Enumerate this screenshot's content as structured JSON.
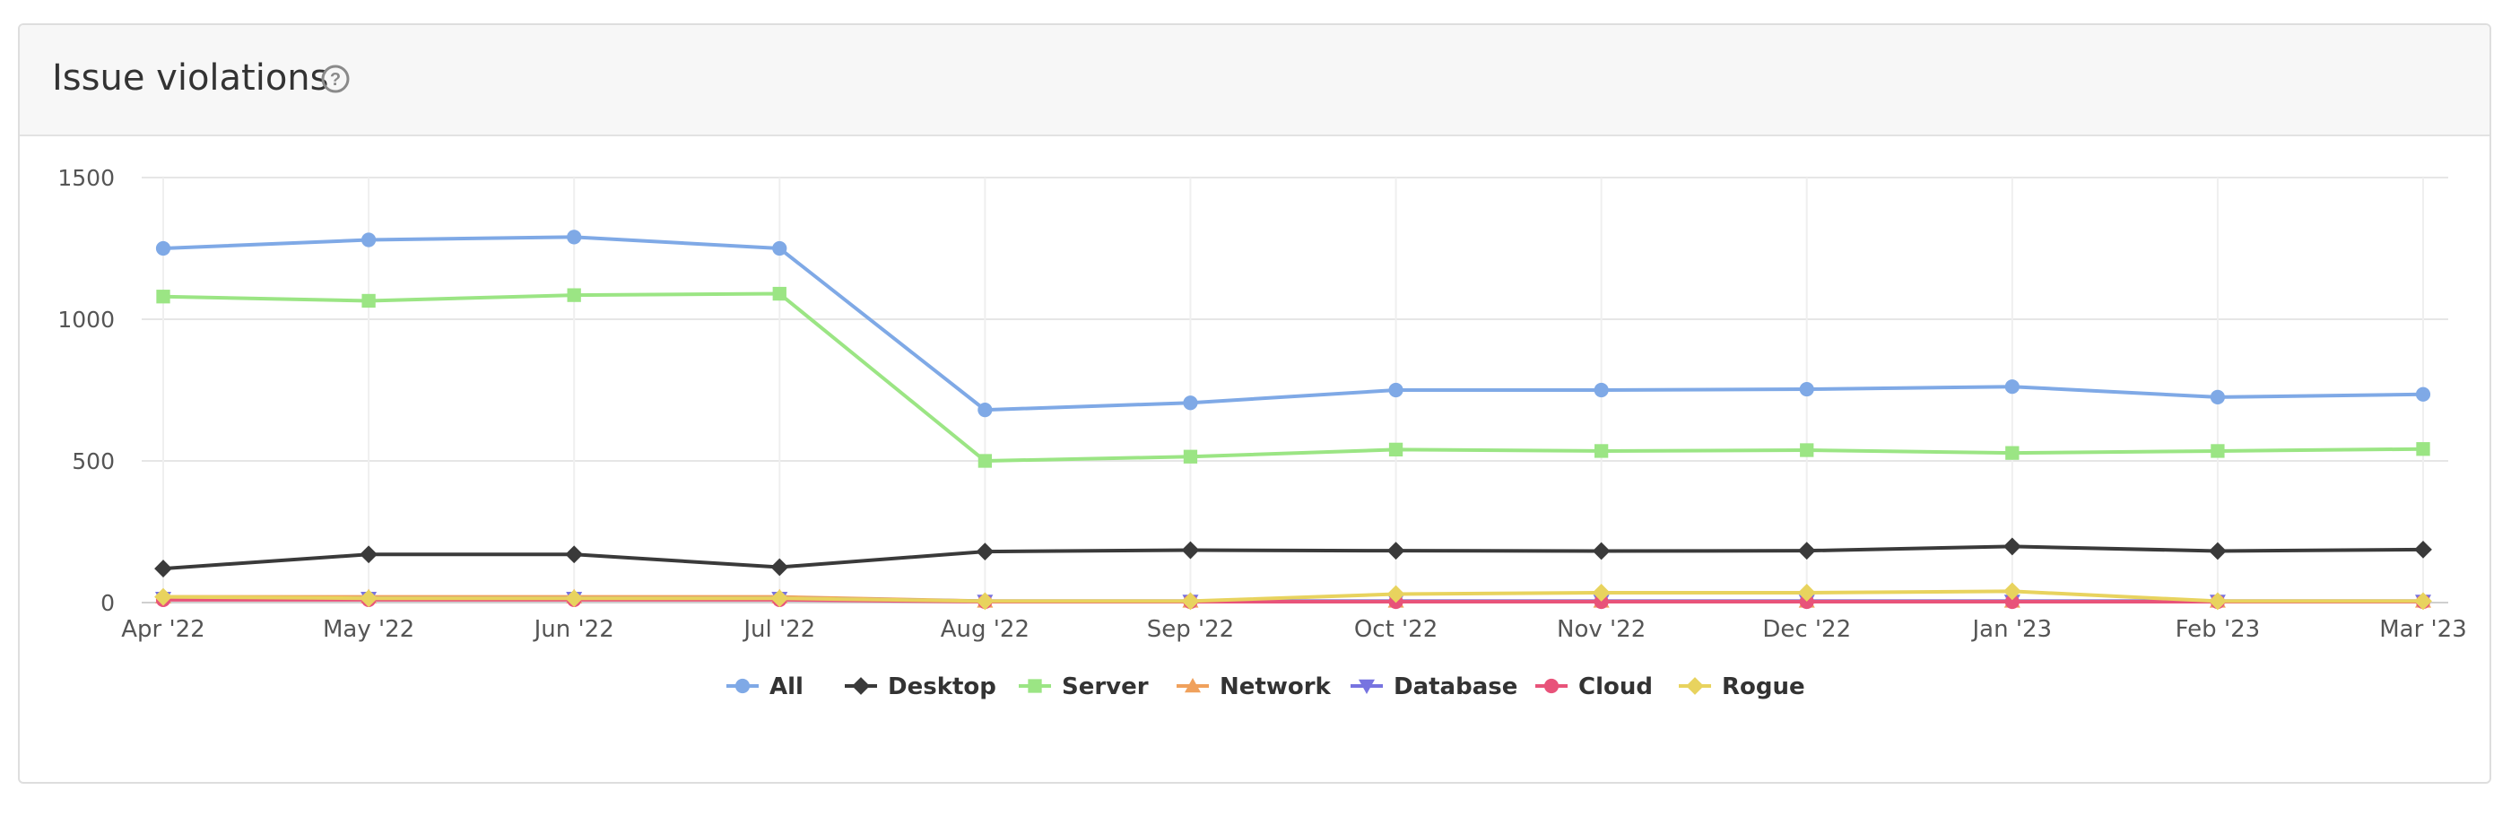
{
  "card": {
    "title": "Issue violations"
  },
  "colors": {
    "All": "#7fa9e6",
    "Desktop": "#3a3a3a",
    "Server": "#9be584",
    "Network": "#f0a15c",
    "Database": "#7774e0",
    "Cloud": "#e8537a",
    "Rogue": "#e8d35e"
  },
  "chart_data": {
    "type": "line",
    "categories": [
      "Apr '22",
      "May '22",
      "Jun '22",
      "Jul '22",
      "Aug '22",
      "Sep '22",
      "Oct '22",
      "Nov '22",
      "Dec '22",
      "Jan '23",
      "Feb '23",
      "Mar '23"
    ],
    "ylim": [
      0,
      1500
    ],
    "yticks": [
      0,
      500,
      1000,
      1500
    ],
    "grid": true,
    "legend": "bottom-center",
    "series": [
      {
        "name": "All",
        "marker": "circle",
        "values": [
          1250,
          1280,
          1290,
          1250,
          680,
          705,
          750,
          750,
          753,
          762,
          725,
          735
        ]
      },
      {
        "name": "Desktop",
        "marker": "diamond",
        "values": [
          120,
          170,
          170,
          125,
          180,
          185,
          183,
          182,
          183,
          198,
          182,
          187
        ]
      },
      {
        "name": "Server",
        "marker": "square",
        "values": [
          1080,
          1065,
          1085,
          1090,
          500,
          515,
          540,
          535,
          538,
          528,
          535,
          542
        ]
      },
      {
        "name": "Network",
        "marker": "triangle",
        "values": [
          20,
          20,
          20,
          20,
          5,
          5,
          5,
          5,
          5,
          5,
          5,
          5
        ]
      },
      {
        "name": "Database",
        "marker": "triangle-down",
        "values": [
          15,
          15,
          15,
          15,
          5,
          5,
          5,
          5,
          5,
          5,
          5,
          5
        ]
      },
      {
        "name": "Cloud",
        "marker": "circle",
        "values": [
          10,
          10,
          10,
          10,
          3,
          3,
          3,
          3,
          3,
          3,
          3,
          3
        ]
      },
      {
        "name": "Rogue",
        "marker": "diamond",
        "values": [
          20,
          15,
          15,
          15,
          5,
          5,
          30,
          35,
          35,
          40,
          5,
          5
        ]
      }
    ]
  }
}
